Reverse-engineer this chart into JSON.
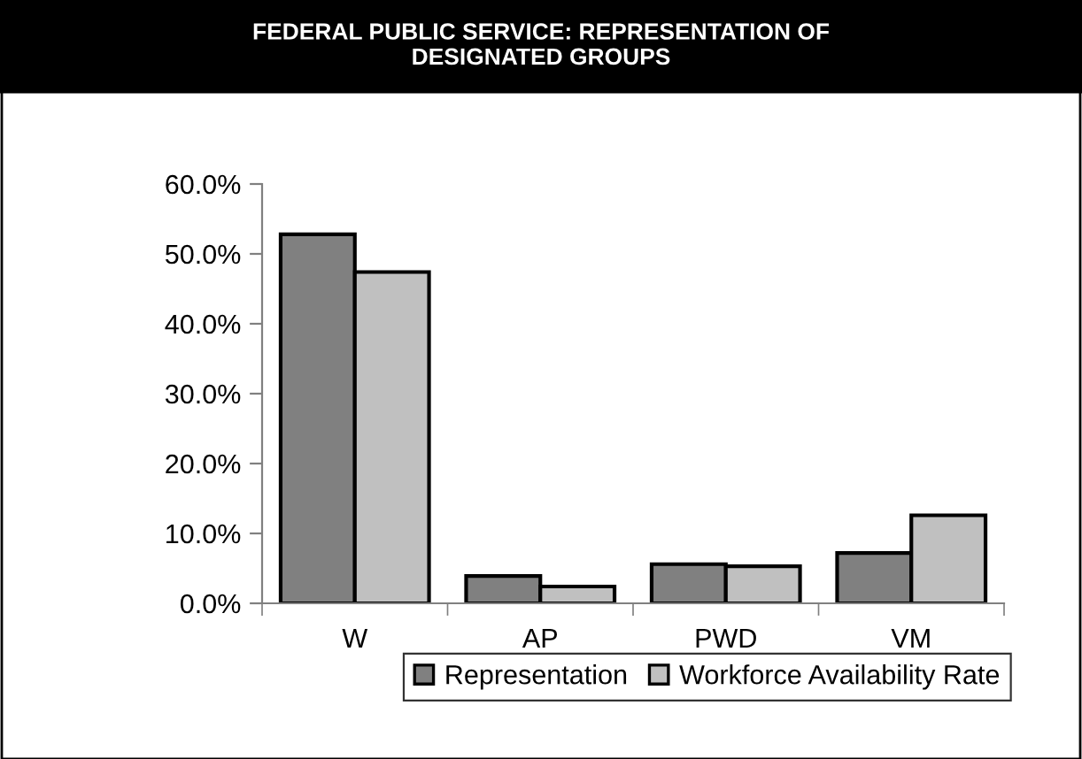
{
  "chart_data": {
    "type": "bar",
    "title": "FEDERAL PUBLIC SERVICE: REPRESENTATION OF\nDESIGNATED GROUPS",
    "categories": [
      "W",
      "AP",
      "PWD",
      "VM"
    ],
    "series": [
      {
        "name": "Representation",
        "color": "#808080",
        "values": [
          52.8,
          3.9,
          5.6,
          7.2
        ]
      },
      {
        "name": "Workforce Availability Rate",
        "color": "#c0c0c0",
        "values": [
          47.4,
          2.4,
          5.3,
          12.6
        ]
      }
    ],
    "ylim": [
      0,
      60
    ],
    "yticks": [
      {
        "value": 0,
        "label": "0.0%"
      },
      {
        "value": 10,
        "label": "10.0%"
      },
      {
        "value": 20,
        "label": "20.0%"
      },
      {
        "value": 30,
        "label": "30.0%"
      },
      {
        "value": 40,
        "label": "40.0%"
      },
      {
        "value": 50,
        "label": "50.0%"
      },
      {
        "value": 60,
        "label": "60.0%"
      }
    ],
    "grid": false,
    "legend": "bottom"
  }
}
